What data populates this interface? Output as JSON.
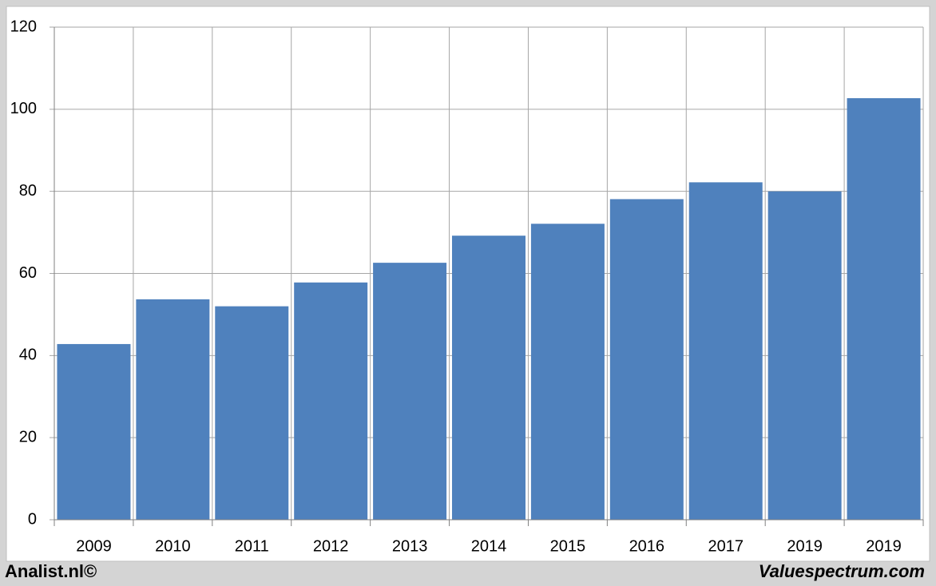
{
  "chart_data": {
    "type": "bar",
    "categories": [
      "2009",
      "2010",
      "2011",
      "2012",
      "2013",
      "2014",
      "2015",
      "2016",
      "2017",
      "2019",
      "2019"
    ],
    "values": [
      42.8,
      53.7,
      52,
      57.8,
      62.6,
      69.2,
      72.1,
      78.1,
      82.2,
      80,
      102.7
    ],
    "color": "#4f81bd",
    "ylim": [
      0,
      120
    ],
    "yticks": [
      0,
      20,
      40,
      60,
      80,
      100,
      120
    ],
    "grid": true
  },
  "footer_left": "Analist.nl©",
  "footer_right": "Valuespectrum.com"
}
